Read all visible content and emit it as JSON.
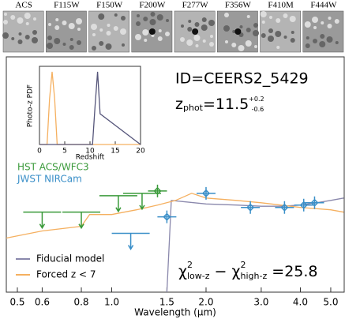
{
  "cutouts": [
    "ACS",
    "F115W",
    "F150W",
    "F200W",
    "F277W",
    "F356W",
    "F410M",
    "F444W"
  ],
  "chart_data": [
    {
      "type": "sed",
      "annotations": {
        "id": "ID=CEERS2_5429",
        "zphot": {
          "symbol": "z",
          "subscript": "phot",
          "text": "=11.5",
          "upper": "+0.2",
          "lower": "-0.6"
        },
        "chi": [
          "χ",
          "2",
          "low-z",
          " − χ",
          "2",
          "high-z",
          " =25.8"
        ]
      },
      "xlabel": "Wavelength (μm)",
      "xlog": true,
      "xlim": [
        0.461,
        5.52
      ],
      "xticks": [
        0.5,
        0.6,
        {
          "value": 0.8,
          "label": "0.8"
        },
        {
          "value": 1,
          "label": "1.0"
        },
        1.5,
        {
          "value": 2,
          "label": "2.0"
        },
        {
          "value": 3,
          "label": "3.0"
        },
        {
          "value": 4,
          "label": "4.0"
        },
        {
          "value": 5,
          "label": "5.0"
        }
      ],
      "ylim": [
        0,
        10
      ],
      "models": [
        {
          "name": "Fiducial model",
          "color": "#8a88ac",
          "x": [
            1.5,
            1.55,
            2.0,
            2.5,
            3.0,
            3.5,
            4.0,
            4.5,
            5.0,
            5.5
          ],
          "values": [
            0,
            3.9,
            3.75,
            3.7,
            3.65,
            3.65,
            3.7,
            3.8,
            3.9,
            4.0
          ]
        },
        {
          "name": "Forced z < 7",
          "color": "#f5b060",
          "x": [
            0.461,
            0.6,
            0.8,
            0.85,
            1.0,
            1.2,
            1.4,
            1.6,
            1.8,
            2.0,
            2.5,
            3.0,
            4.0,
            5.0,
            5.5
          ],
          "values": [
            2.3,
            2.6,
            2.8,
            3.3,
            3.3,
            3.5,
            3.7,
            3.9,
            4.2,
            4.0,
            3.9,
            3.8,
            3.6,
            3.5,
            3.4
          ]
        }
      ],
      "series": [
        {
          "name": "HST ACS/WFC3",
          "color": "#3a9a3a",
          "x": [
            0.6,
            0.8,
            1.05,
            1.25,
            1.4
          ],
          "values": [
            3.4,
            3.4,
            4.1,
            4.2,
            4.3
          ],
          "upper_limits": [
            true,
            true,
            true,
            true,
            false
          ]
        },
        {
          "name": "JWST NIRCam",
          "color": "#3a8fc8",
          "x": [
            1.15,
            1.5,
            2.0,
            2.77,
            3.56,
            4.1,
            4.44
          ],
          "values": [
            2.5,
            3.2,
            4.2,
            3.6,
            3.6,
            3.7,
            3.8
          ],
          "upper_limits": [
            true,
            false,
            false,
            false,
            false,
            false,
            false
          ]
        }
      ]
    },
    {
      "type": "pdf",
      "ylabel": "Photo-z PDF",
      "xlabel": "Redshift",
      "xlim": [
        0,
        20
      ],
      "xticks": [
        0,
        5,
        10,
        15,
        20
      ],
      "ylim": [
        0,
        1
      ],
      "x": [
        0,
        1.5,
        2,
        2.5,
        3,
        3.5,
        10,
        10.5,
        11,
        11.5,
        12,
        20
      ],
      "series": [
        {
          "color": "#f5b060",
          "values": [
            0,
            0,
            0.6,
            0.95,
            0.6,
            0,
            0,
            0,
            0,
            0,
            0,
            0
          ]
        },
        {
          "color": "#55557a",
          "values": [
            0,
            0,
            0,
            0,
            0,
            0,
            0,
            0,
            0.5,
            0.95,
            0.4,
            0
          ]
        }
      ]
    }
  ]
}
